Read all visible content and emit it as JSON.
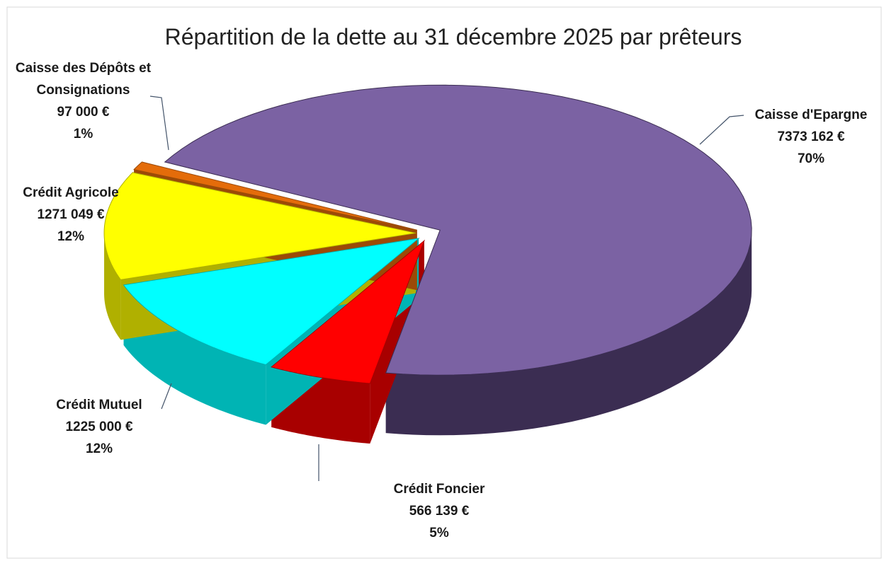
{
  "chart_data": {
    "type": "pie",
    "title": "Répartition de la dette au 31 décembre 2025 par prêteurs",
    "categories": [
      "Caisse d'Epargne",
      "Crédit Foncier",
      "Crédit Mutuel",
      "Crédit Agricole",
      "Caisse des Dépôts et Consignations"
    ],
    "values": [
      7373162,
      566139,
      1225000,
      1271049,
      97000
    ],
    "value_labels": [
      "7373 162 €",
      "566 139 €",
      "1225 000 €",
      "1271 049 €",
      "97 000 €"
    ],
    "percent_labels": [
      "70%",
      "5%",
      "12%",
      "12%",
      "1%"
    ],
    "colors": [
      "#7b62a3",
      "#ff0000",
      "#00ffff",
      "#ffff00",
      "#e46c0a"
    ],
    "side_colors": [
      "#3b2d52",
      "#a80000",
      "#00b4b4",
      "#b0b000",
      "#9c4a07"
    ]
  }
}
